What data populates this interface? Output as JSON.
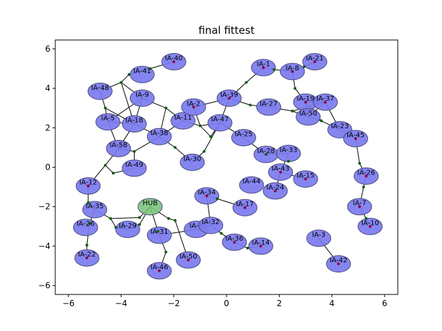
{
  "figure": {
    "title": "final fittest",
    "xlim": [
      -6.5,
      6.5
    ],
    "ylim": [
      -6.45,
      6.45
    ],
    "xticks": [
      -6,
      -4,
      -2,
      0,
      2,
      4,
      6
    ],
    "yticks": [
      -6,
      -4,
      -2,
      0,
      2,
      4,
      6
    ],
    "xtick_labels": [
      "−6",
      "−4",
      "−2",
      "0",
      "2",
      "4",
      "6"
    ],
    "ytick_labels": [
      "−6",
      "−4",
      "−2",
      "0",
      "2",
      "4",
      "6"
    ]
  },
  "style": {
    "node_fill": "#7b7bf0",
    "node_stroke": "#4a4a7a",
    "hub_fill": "#7cc47c",
    "edge_color": "#000000",
    "junction_color": "#0a5c0a",
    "endpoint_color": "#8b0045"
  },
  "nodes": [
    {
      "label": "IA-40",
      "x": -2.0,
      "y": 5.35
    },
    {
      "label": "IA-41",
      "x": -3.2,
      "y": 4.7
    },
    {
      "label": "IA-48",
      "x": -4.8,
      "y": 3.85
    },
    {
      "label": "IA-9",
      "x": -3.2,
      "y": 3.5
    },
    {
      "label": "IA-5",
      "x": -4.5,
      "y": 2.3
    },
    {
      "label": "IA-18",
      "x": -3.5,
      "y": 2.2
    },
    {
      "label": "IA-38",
      "x": -2.55,
      "y": 1.55
    },
    {
      "label": "IA-58",
      "x": -4.1,
      "y": 0.95
    },
    {
      "label": "IA-49",
      "x": -3.5,
      "y": -0.05
    },
    {
      "label": "IA-11",
      "x": -1.65,
      "y": 2.35
    },
    {
      "label": "IA-2",
      "x": -1.25,
      "y": 3.05
    },
    {
      "label": "IA-39",
      "x": 0.1,
      "y": 3.5
    },
    {
      "label": "IA-47",
      "x": -0.25,
      "y": 2.25
    },
    {
      "label": "IA-30",
      "x": -1.3,
      "y": 0.25
    },
    {
      "label": "IA-25",
      "x": 0.65,
      "y": 1.5
    },
    {
      "label": "IA-1",
      "x": 1.4,
      "y": 5.05
    },
    {
      "label": "IA-8",
      "x": 2.5,
      "y": 4.85
    },
    {
      "label": "IA-21",
      "x": 3.35,
      "y": 5.35
    },
    {
      "label": "IA-27",
      "x": 1.6,
      "y": 3.05
    },
    {
      "label": "IA-19",
      "x": 3.0,
      "y": 3.3
    },
    {
      "label": "IA-37",
      "x": 3.75,
      "y": 3.3
    },
    {
      "label": "IA-50",
      "x": 3.1,
      "y": 2.55
    },
    {
      "label": "IA-23",
      "x": 4.3,
      "y": 1.9
    },
    {
      "label": "IA-45",
      "x": 4.9,
      "y": 1.45
    },
    {
      "label": "IA-28",
      "x": 1.5,
      "y": 0.65
    },
    {
      "label": "IA-33",
      "x": 2.35,
      "y": 0.7
    },
    {
      "label": "IA-43",
      "x": 2.05,
      "y": -0.25
    },
    {
      "label": "IA-44",
      "x": 0.95,
      "y": -0.9
    },
    {
      "label": "IA-24",
      "x": 1.85,
      "y": -1.2
    },
    {
      "label": "IA-15",
      "x": 3.0,
      "y": -0.6
    },
    {
      "label": "IA-26",
      "x": 5.3,
      "y": -0.45
    },
    {
      "label": "IA-12",
      "x": -5.25,
      "y": -0.95
    },
    {
      "label": "IA-34",
      "x": -0.75,
      "y": -1.45
    },
    {
      "label": "IA-17",
      "x": 0.7,
      "y": -2.05
    },
    {
      "label": "IA-7",
      "x": 5.05,
      "y": -2.0
    },
    {
      "label": "IA-35",
      "x": -5.0,
      "y": -2.15
    },
    {
      "label": "IA-26",
      "x": -5.35,
      "y": -3.05
    },
    {
      "label": "IA-29",
      "x": -3.75,
      "y": -3.15
    },
    {
      "label": "IA-31",
      "x": -2.55,
      "y": -3.45
    },
    {
      "label": "IA-6",
      "x": -1.15,
      "y": -3.15
    },
    {
      "label": "IA-32",
      "x": -0.6,
      "y": -2.95
    },
    {
      "label": "IA-10",
      "x": 5.45,
      "y": -3.0
    },
    {
      "label": "IA-3",
      "x": 3.5,
      "y": -3.6
    },
    {
      "label": "IA-36",
      "x": 0.3,
      "y": -3.8
    },
    {
      "label": "IA-14",
      "x": 1.3,
      "y": -4.0
    },
    {
      "label": "IA-22",
      "x": -5.3,
      "y": -4.6
    },
    {
      "label": "IA-50",
      "x": -1.45,
      "y": -4.7
    },
    {
      "label": "IA-42",
      "x": 4.25,
      "y": -4.9
    },
    {
      "label": "IA-46",
      "x": -2.55,
      "y": -5.25
    },
    {
      "label": "HUB",
      "x": -2.9,
      "y": -2.0,
      "hub": true
    }
  ],
  "edges": [
    [
      -2.0,
      5.35,
      -2.9,
      5.0
    ],
    [
      -2.9,
      5.0,
      -3.7,
      4.7
    ],
    [
      -3.7,
      4.7,
      -4.0,
      4.3
    ],
    [
      -4.0,
      4.3,
      -4.8,
      3.85
    ],
    [
      -4.0,
      4.3,
      -3.2,
      3.5
    ],
    [
      -3.2,
      3.5,
      -2.3,
      3.0
    ],
    [
      -4.8,
      3.85,
      -4.6,
      3.0
    ],
    [
      -4.6,
      3.0,
      -4.5,
      2.3
    ],
    [
      -4.6,
      3.0,
      -3.5,
      2.2
    ],
    [
      -3.2,
      3.5,
      -3.5,
      2.2
    ],
    [
      -4.5,
      2.3,
      -3.5,
      2.2
    ],
    [
      -3.5,
      2.2,
      -2.55,
      1.55
    ],
    [
      -2.3,
      3.0,
      -2.55,
      1.55
    ],
    [
      -2.3,
      3.0,
      -1.65,
      2.35
    ],
    [
      -3.2,
      3.5,
      -4.5,
      2.3
    ],
    [
      -4.0,
      4.3,
      -3.5,
      2.2
    ],
    [
      -4.5,
      2.3,
      -4.1,
      0.95
    ],
    [
      -3.5,
      2.2,
      -4.1,
      0.95
    ],
    [
      -2.55,
      1.55,
      -3.5,
      0.8
    ],
    [
      -3.5,
      0.8,
      -4.1,
      0.95
    ],
    [
      -3.5,
      0.8,
      -3.5,
      -0.05
    ],
    [
      -4.1,
      0.95,
      -4.6,
      0.1
    ],
    [
      -4.6,
      0.1,
      -4.3,
      -0.3
    ],
    [
      -4.3,
      -0.3,
      -3.5,
      -0.05
    ],
    [
      -4.6,
      0.1,
      -5.25,
      -0.95
    ],
    [
      -2.55,
      1.55,
      -1.95,
      1.0
    ],
    [
      -1.95,
      1.0,
      -1.3,
      0.25
    ],
    [
      -2.55,
      1.55,
      -1.65,
      2.35
    ],
    [
      -1.65,
      2.35,
      -1.0,
      2.1
    ],
    [
      -1.0,
      2.1,
      -1.25,
      3.05
    ],
    [
      -1.25,
      3.05,
      0.1,
      3.5
    ],
    [
      -1.0,
      2.1,
      -0.25,
      2.25
    ],
    [
      -0.25,
      2.25,
      0.1,
      3.5
    ],
    [
      -0.25,
      2.25,
      -0.6,
      1.55
    ],
    [
      -0.6,
      1.55,
      -1.0,
      2.1
    ],
    [
      -0.85,
      0.8,
      -1.3,
      0.25
    ],
    [
      -0.85,
      0.8,
      -0.25,
      2.25
    ],
    [
      0.1,
      3.5,
      0.9,
      3.15
    ],
    [
      0.9,
      3.15,
      1.6,
      3.05
    ],
    [
      1.6,
      3.05,
      2.5,
      2.85
    ],
    [
      2.5,
      2.85,
      3.1,
      2.55
    ],
    [
      3.0,
      3.3,
      3.1,
      2.55
    ],
    [
      3.75,
      3.3,
      3.1,
      2.55
    ],
    [
      3.0,
      3.3,
      3.75,
      3.3
    ],
    [
      3.1,
      2.55,
      3.6,
      2.35
    ],
    [
      3.6,
      2.35,
      4.3,
      1.9
    ],
    [
      3.75,
      3.3,
      4.3,
      1.9
    ],
    [
      3.0,
      3.3,
      3.6,
      2.35
    ],
    [
      2.5,
      2.85,
      3.75,
      3.3
    ],
    [
      0.1,
      3.5,
      0.75,
      4.3
    ],
    [
      0.75,
      4.3,
      1.4,
      5.05
    ],
    [
      1.4,
      5.05,
      1.8,
      4.95
    ],
    [
      1.8,
      4.95,
      2.5,
      4.85
    ],
    [
      2.5,
      4.85,
      2.95,
      5.1
    ],
    [
      2.95,
      5.1,
      3.35,
      5.35
    ],
    [
      2.5,
      4.85,
      2.6,
      4.0
    ],
    [
      2.6,
      4.0,
      3.0,
      3.3
    ],
    [
      -0.25,
      2.25,
      0.65,
      1.5
    ],
    [
      0.65,
      1.5,
      1.5,
      0.65
    ],
    [
      1.5,
      0.65,
      2.35,
      0.7
    ],
    [
      2.35,
      0.7,
      2.05,
      -0.25
    ],
    [
      2.05,
      -0.25,
      1.85,
      -1.2
    ],
    [
      2.05,
      -0.25,
      3.0,
      -0.6
    ],
    [
      4.3,
      1.9,
      4.9,
      1.45
    ],
    [
      4.9,
      1.45,
      5.05,
      0.2
    ],
    [
      5.05,
      0.2,
      5.3,
      -0.45
    ],
    [
      5.3,
      -0.45,
      5.2,
      -1.0
    ],
    [
      5.2,
      -1.0,
      5.05,
      -2.0
    ],
    [
      5.05,
      -2.0,
      5.3,
      -2.6
    ],
    [
      5.3,
      -2.6,
      5.45,
      -3.0
    ],
    [
      -5.25,
      -0.95,
      -5.25,
      -1.8
    ],
    [
      -5.25,
      -1.8,
      -5.0,
      -2.15
    ],
    [
      -5.0,
      -2.15,
      -5.2,
      -2.85
    ],
    [
      -5.2,
      -2.85,
      -5.35,
      -3.05
    ],
    [
      -5.2,
      -2.85,
      -5.3,
      -3.95
    ],
    [
      -5.3,
      -3.95,
      -5.3,
      -4.6
    ],
    [
      -5.0,
      -2.15,
      -4.4,
      -2.6
    ],
    [
      -4.4,
      -2.6,
      -4.2,
      -3.05
    ],
    [
      -4.2,
      -3.05,
      -3.75,
      -3.15
    ],
    [
      -4.4,
      -2.6,
      -3.3,
      -2.55
    ],
    [
      -3.3,
      -2.55,
      -2.9,
      -2.0
    ],
    [
      -2.9,
      -2.0,
      -3.3,
      -2.9
    ],
    [
      -3.3,
      -2.9,
      -3.75,
      -3.15
    ],
    [
      -2.9,
      -2.0,
      -2.6,
      -3.25
    ],
    [
      -2.6,
      -3.25,
      -2.55,
      -3.45
    ],
    [
      -2.9,
      -2.0,
      -2.2,
      -2.6
    ],
    [
      -2.2,
      -2.6,
      -1.95,
      -2.7
    ],
    [
      -1.95,
      -2.7,
      -1.45,
      -4.7
    ],
    [
      -2.55,
      -3.45,
      -2.3,
      -4.3
    ],
    [
      -2.3,
      -4.3,
      -2.55,
      -5.25
    ],
    [
      -2.55,
      -3.45,
      -1.15,
      -3.15
    ],
    [
      -1.15,
      -3.15,
      -0.6,
      -2.95
    ],
    [
      -0.6,
      -2.95,
      -0.75,
      -1.45
    ],
    [
      -0.75,
      -1.45,
      -0.35,
      -1.6
    ],
    [
      -0.35,
      -1.6,
      0.7,
      -2.05
    ],
    [
      -0.6,
      -2.95,
      -0.2,
      -3.35
    ],
    [
      -0.2,
      -3.35,
      0.3,
      -3.8
    ],
    [
      0.3,
      -3.8,
      0.8,
      -4.1
    ],
    [
      0.8,
      -4.1,
      1.3,
      -4.0
    ],
    [
      3.5,
      -3.6,
      4.25,
      -4.9
    ]
  ],
  "junctions": [
    [
      -2.9,
      5.0
    ],
    [
      -3.7,
      4.7
    ],
    [
      -4.0,
      4.3
    ],
    [
      -4.6,
      3.0
    ],
    [
      -2.3,
      3.0
    ],
    [
      -3.5,
      0.8
    ],
    [
      -4.6,
      0.1
    ],
    [
      -4.3,
      -0.3
    ],
    [
      -1.95,
      1.0
    ],
    [
      -1.0,
      2.1
    ],
    [
      -0.6,
      1.55
    ],
    [
      -0.85,
      0.8
    ],
    [
      0.9,
      3.15
    ],
    [
      2.5,
      2.85
    ],
    [
      3.6,
      2.35
    ],
    [
      0.75,
      4.3
    ],
    [
      1.8,
      4.95
    ],
    [
      2.95,
      5.1
    ],
    [
      2.6,
      4.0
    ],
    [
      5.05,
      0.2
    ],
    [
      5.2,
      -1.0
    ],
    [
      5.3,
      -2.6
    ],
    [
      -5.25,
      -1.8
    ],
    [
      -5.2,
      -2.85
    ],
    [
      -5.3,
      -3.95
    ],
    [
      -4.4,
      -2.6
    ],
    [
      -4.2,
      -3.05
    ],
    [
      -3.3,
      -2.55
    ],
    [
      -3.3,
      -2.9
    ],
    [
      -2.6,
      -3.25
    ],
    [
      -2.2,
      -2.6
    ],
    [
      -1.95,
      -2.7
    ],
    [
      -2.3,
      -4.3
    ],
    [
      -0.35,
      -1.6
    ],
    [
      -0.2,
      -3.35
    ],
    [
      0.8,
      -4.1
    ],
    [
      1.5,
      0.65
    ],
    [
      2.35,
      0.3
    ]
  ],
  "endpoints": [
    [
      -2.0,
      5.35
    ],
    [
      1.4,
      5.05
    ],
    [
      3.35,
      5.35
    ],
    [
      2.5,
      4.85
    ],
    [
      0.1,
      3.5
    ],
    [
      -1.25,
      3.05
    ],
    [
      3.0,
      3.3
    ],
    [
      3.75,
      3.3
    ],
    [
      1.85,
      -1.2
    ],
    [
      3.0,
      -0.6
    ],
    [
      2.05,
      -0.25
    ],
    [
      1.3,
      -4.0
    ],
    [
      0.7,
      -2.05
    ],
    [
      -0.75,
      -1.45
    ],
    [
      4.25,
      -4.9
    ],
    [
      -2.55,
      -5.25
    ],
    [
      5.45,
      -3.0
    ],
    [
      5.05,
      -2.0
    ],
    [
      4.9,
      1.45
    ],
    [
      5.3,
      -0.45
    ],
    [
      -5.25,
      -0.95
    ],
    [
      -5.3,
      -4.6
    ],
    [
      -1.45,
      -4.7
    ],
    [
      0.3,
      -3.8
    ]
  ]
}
